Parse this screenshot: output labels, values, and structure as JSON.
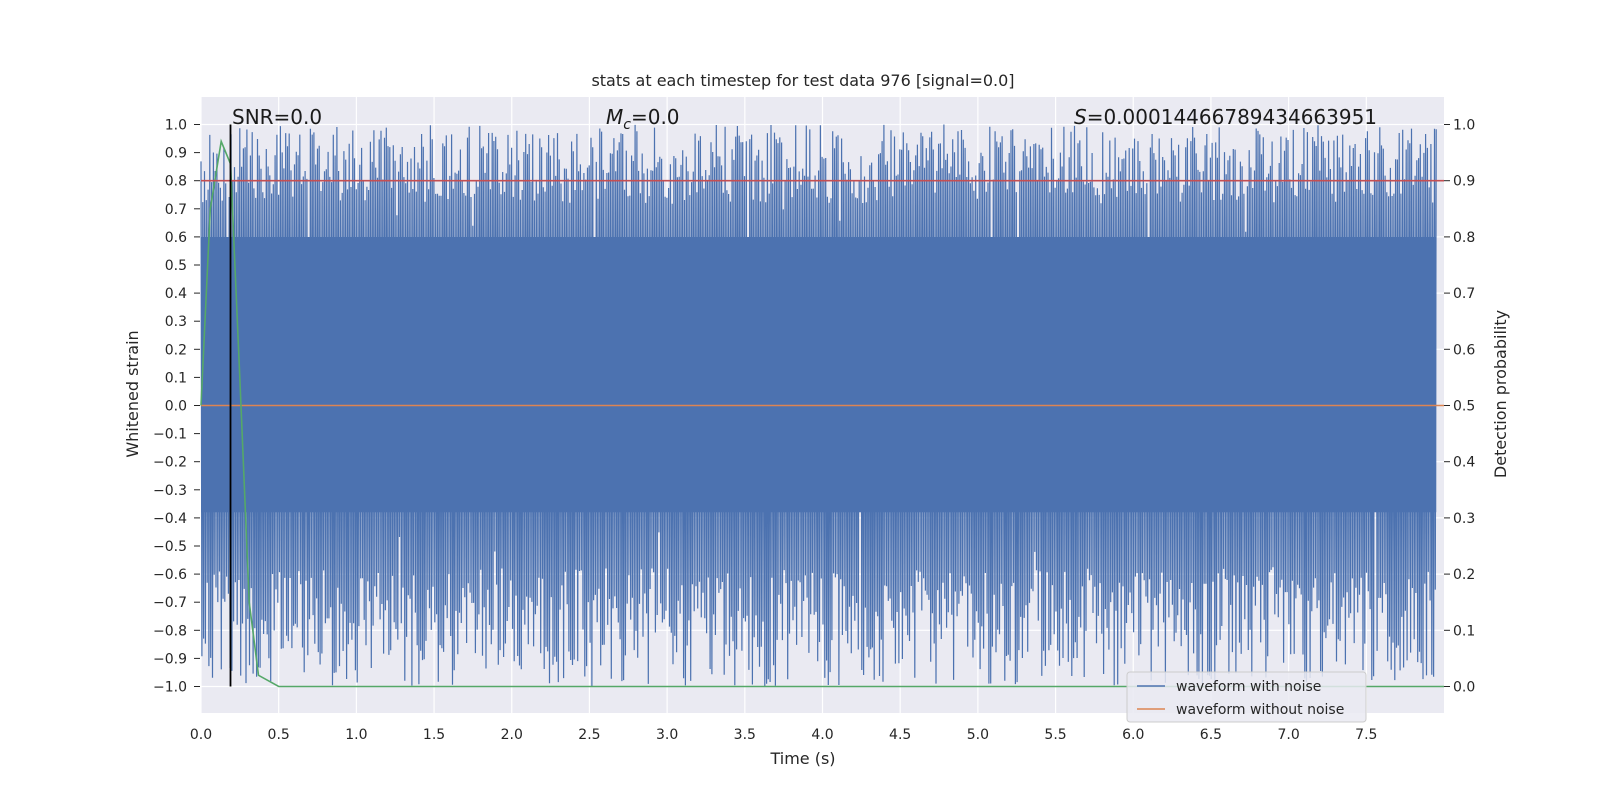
{
  "chart_data": {
    "type": "line",
    "title": "stats at each timestep for test data 976 [signal=0.0]",
    "xlabel": "Time (s)",
    "ylabel": "Whitened strain",
    "y2label": "Detection probability",
    "xlim": [
      0.0,
      8.0
    ],
    "ylim": [
      -1.0,
      1.0
    ],
    "y2lim": [
      0.0,
      1.0
    ],
    "xticks": [
      "0.0",
      "0.5",
      "1.0",
      "1.5",
      "2.0",
      "2.5",
      "3.0",
      "3.5",
      "4.0",
      "4.5",
      "5.0",
      "5.5",
      "6.0",
      "6.5",
      "7.0",
      "7.5"
    ],
    "yticks": [
      "1.0",
      "0.9",
      "0.8",
      "0.7",
      "0.6",
      "0.5",
      "0.4",
      "0.3",
      "0.2",
      "0.1",
      "0.0",
      "−0.1",
      "−0.2",
      "−0.3",
      "−0.4",
      "−0.5",
      "−0.6",
      "−0.7",
      "−0.8",
      "−0.9",
      "−1.0"
    ],
    "y2ticks": [
      "1.0",
      "0.9",
      "0.8",
      "0.7",
      "0.6",
      "0.5",
      "0.4",
      "0.3",
      "0.2",
      "0.1",
      "0.0"
    ],
    "annotations": {
      "snr": "SNR=0.0",
      "mc_symbol": "M",
      "mc_sub": "c",
      "mc_value": "=0.0",
      "s_symbol": "S",
      "s_value": "=0.00014466789434663951"
    },
    "legend": {
      "position": "bottom-right",
      "entries": [
        {
          "label": "waveform with noise",
          "color": "#4c72b0"
        },
        {
          "label": "waveform without noise",
          "color": "#dd8452"
        }
      ]
    },
    "series": [
      {
        "name": "waveform with noise",
        "axis": "left",
        "color": "#4c72b0",
        "kind": "noise",
        "range": [
          -1.0,
          1.0
        ]
      },
      {
        "name": "waveform without noise",
        "axis": "left",
        "color": "#dd8452",
        "x": [
          0.0,
          8.0
        ],
        "y": [
          0.0,
          0.0
        ]
      },
      {
        "name": "detection probability",
        "axis": "right",
        "color": "#55a868",
        "x": [
          0.0,
          0.06,
          0.13,
          0.19,
          0.25,
          0.31,
          0.37,
          0.5,
          8.0
        ],
        "y": [
          0.5,
          0.85,
          0.97,
          0.93,
          0.55,
          0.15,
          0.02,
          0.0,
          0.0
        ]
      },
      {
        "name": "threshold",
        "axis": "right",
        "color": "#c44e52",
        "x": [
          0.0,
          8.0
        ],
        "y": [
          0.9,
          0.9
        ]
      },
      {
        "name": "marker",
        "axis": "left",
        "color": "#000000",
        "x": [
          0.19,
          0.19
        ],
        "y": [
          -1.0,
          1.0
        ]
      }
    ],
    "colors": {
      "background": "#eaeaf2",
      "grid": "#ffffff"
    }
  }
}
